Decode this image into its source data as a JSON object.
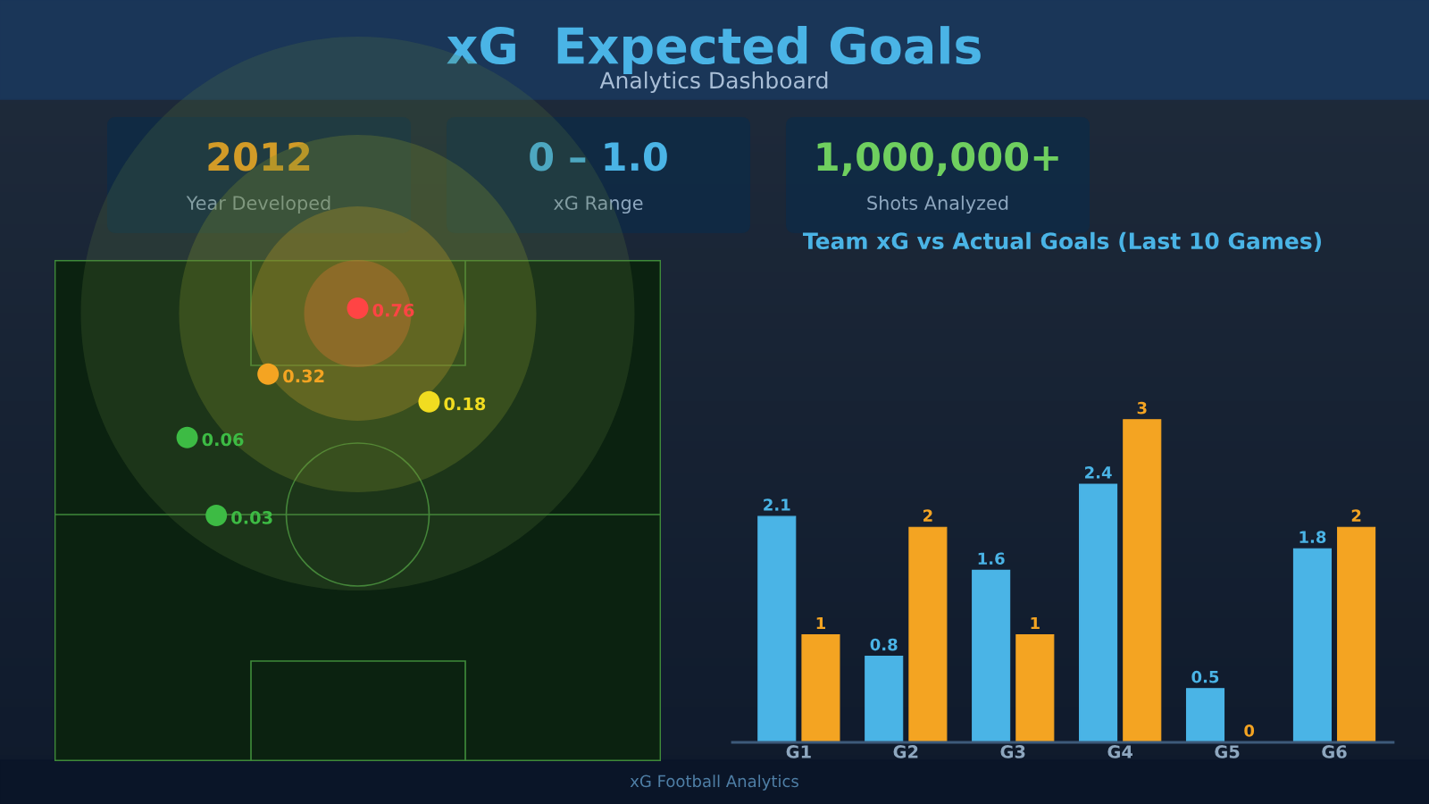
{
  "chart_data": [
    {
      "type": "other",
      "title": "xG  Expected Goals",
      "subtitle": "Analytics Dashboard",
      "annotations": [
        "2012",
        "Year Developed",
        "0 – 1.0",
        "xG Range",
        "1,000,000+",
        "Shots Analyzed",
        "xG Football Analytics"
      ],
      "colors": [
        "#f4a422",
        "#4ab4e6",
        "#6fcf5f"
      ]
    },
    {
      "type": "other",
      "annotations": [
        "0.76",
        "0.32",
        "0.18",
        "0.06",
        "0.03"
      ],
      "colors": [
        "#ff4444",
        "#f4a422",
        "#f1dc20",
        "#3dbb44",
        "#3dbb44"
      ]
    },
    {
      "type": "bar",
      "title": "Team xG vs Actual Goals (Last 10 Games)",
      "categories": [
        "G1",
        "G2",
        "G3",
        "G4",
        "G5",
        "G6"
      ],
      "series": [
        {
          "color": "#4ab4e6",
          "values": [
            2.1,
            0.8,
            1.6,
            2.4,
            0.5,
            1.8
          ]
        },
        {
          "color": "#f4a422",
          "values": [
            1,
            2,
            1,
            3,
            0,
            2
          ]
        }
      ],
      "data_labels": true,
      "grid": false,
      "legend": false
    }
  ]
}
